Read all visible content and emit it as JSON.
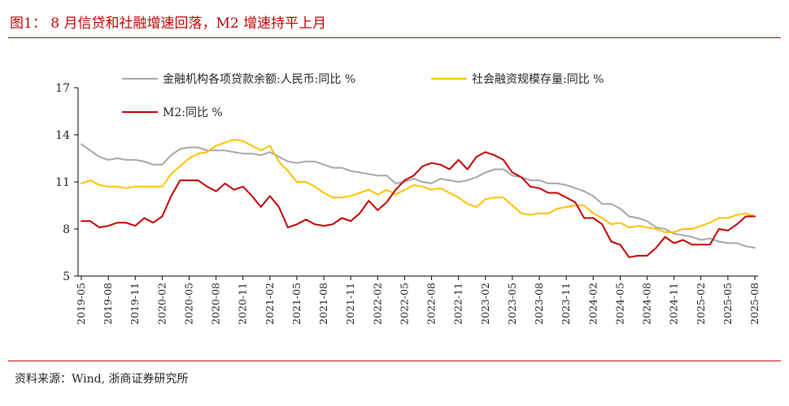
{
  "header": {
    "title": "图1： 8 月信贷和社融增速回落，M2 增速持平上月"
  },
  "footer": {
    "source": "资料来源：Wind, 浙商证券研究所"
  },
  "chart_data": {
    "type": "line",
    "ylim": [
      5,
      17
    ],
    "yticks": [
      "5",
      "8",
      "11",
      "14",
      "17"
    ],
    "xtick_labels": [
      "2019-05",
      "2019-08",
      "2019-11",
      "2020-02",
      "2020-05",
      "2020-08",
      "2020-11",
      "2021-02",
      "2021-05",
      "2021-08",
      "2021-11",
      "2022-02",
      "2022-05",
      "2022-08",
      "2022-11",
      "2023-02",
      "2023-05",
      "2023-08",
      "2023-11",
      "2024-02",
      "2024-05",
      "2024-08",
      "2024-11",
      "2025-02",
      "2025-05",
      "2025-08"
    ],
    "x": [
      "2019-05",
      "2019-06",
      "2019-07",
      "2019-08",
      "2019-09",
      "2019-10",
      "2019-11",
      "2019-12",
      "2020-01",
      "2020-02",
      "2020-03",
      "2020-04",
      "2020-05",
      "2020-06",
      "2020-07",
      "2020-08",
      "2020-09",
      "2020-10",
      "2020-11",
      "2020-12",
      "2021-01",
      "2021-02",
      "2021-03",
      "2021-04",
      "2021-05",
      "2021-06",
      "2021-07",
      "2021-08",
      "2021-09",
      "2021-10",
      "2021-11",
      "2021-12",
      "2022-01",
      "2022-02",
      "2022-03",
      "2022-04",
      "2022-05",
      "2022-06",
      "2022-07",
      "2022-08",
      "2022-09",
      "2022-10",
      "2022-11",
      "2022-12",
      "2023-01",
      "2023-02",
      "2023-03",
      "2023-04",
      "2023-05",
      "2023-06",
      "2023-07",
      "2023-08",
      "2023-09",
      "2023-10",
      "2023-11",
      "2023-12",
      "2024-01",
      "2024-02",
      "2024-03",
      "2024-04",
      "2024-05",
      "2024-06",
      "2024-07",
      "2024-08",
      "2024-09",
      "2024-10",
      "2024-11",
      "2024-12",
      "2025-01",
      "2025-02",
      "2025-03",
      "2025-04",
      "2025-05",
      "2025-06",
      "2025-07",
      "2025-08"
    ],
    "series": [
      {
        "name": "金融机构各项贷款余额:人民币:同比 %",
        "color": "#a6a6a6",
        "values": [
          13.4,
          13.0,
          12.6,
          12.4,
          12.5,
          12.4,
          12.4,
          12.3,
          12.1,
          12.1,
          12.7,
          13.1,
          13.2,
          13.2,
          13.0,
          13.0,
          13.0,
          12.9,
          12.8,
          12.8,
          12.7,
          12.9,
          12.6,
          12.3,
          12.2,
          12.3,
          12.3,
          12.1,
          11.9,
          11.9,
          11.7,
          11.6,
          11.5,
          11.4,
          11.4,
          10.9,
          11.0,
          11.2,
          11.0,
          10.9,
          11.2,
          11.1,
          11.0,
          11.1,
          11.3,
          11.6,
          11.8,
          11.8,
          11.4,
          11.3,
          11.1,
          11.1,
          10.9,
          10.9,
          10.8,
          10.6,
          10.4,
          10.1,
          9.6,
          9.6,
          9.3,
          8.8,
          8.7,
          8.5,
          8.1,
          8.0,
          7.7,
          7.6,
          7.5,
          7.3,
          7.4,
          7.2,
          7.1,
          7.1,
          6.9,
          6.8
        ]
      },
      {
        "name": "社会融资规模存量:同比 %",
        "color": "#ffc000",
        "values": [
          10.9,
          11.1,
          10.8,
          10.7,
          10.7,
          10.6,
          10.7,
          10.7,
          10.7,
          10.7,
          11.5,
          12.0,
          12.5,
          12.8,
          12.9,
          13.3,
          13.5,
          13.7,
          13.6,
          13.3,
          13.0,
          13.3,
          12.3,
          11.7,
          11.0,
          11.0,
          10.7,
          10.3,
          10.0,
          10.0,
          10.1,
          10.3,
          10.5,
          10.2,
          10.5,
          10.2,
          10.5,
          10.8,
          10.7,
          10.5,
          10.6,
          10.3,
          10.0,
          9.6,
          9.4,
          9.9,
          10.0,
          10.0,
          9.5,
          9.0,
          8.9,
          9.0,
          9.0,
          9.3,
          9.4,
          9.5,
          9.5,
          9.0,
          8.7,
          8.3,
          8.4,
          8.1,
          8.2,
          8.1,
          8.0,
          7.8,
          7.8,
          8.0,
          8.0,
          8.2,
          8.4,
          8.7,
          8.7,
          8.9,
          9.0,
          8.8
        ]
      },
      {
        "name": "M2:同比 %",
        "color": "#c00000",
        "values": [
          8.5,
          8.5,
          8.1,
          8.2,
          8.4,
          8.4,
          8.2,
          8.7,
          8.4,
          8.8,
          10.1,
          11.1,
          11.1,
          11.1,
          10.7,
          10.4,
          10.9,
          10.5,
          10.7,
          10.1,
          9.4,
          10.1,
          9.4,
          8.1,
          8.3,
          8.6,
          8.3,
          8.2,
          8.3,
          8.7,
          8.5,
          9.0,
          9.8,
          9.2,
          9.7,
          10.5,
          11.1,
          11.4,
          12.0,
          12.2,
          12.1,
          11.8,
          12.4,
          11.8,
          12.6,
          12.9,
          12.7,
          12.4,
          11.6,
          11.3,
          10.7,
          10.6,
          10.3,
          10.3,
          10.0,
          9.7,
          8.7,
          8.7,
          8.3,
          7.2,
          7.0,
          6.2,
          6.3,
          6.3,
          6.8,
          7.5,
          7.1,
          7.3,
          7.0,
          7.0,
          7.0,
          8.0,
          7.9,
          8.3,
          8.8,
          8.8
        ]
      }
    ]
  }
}
